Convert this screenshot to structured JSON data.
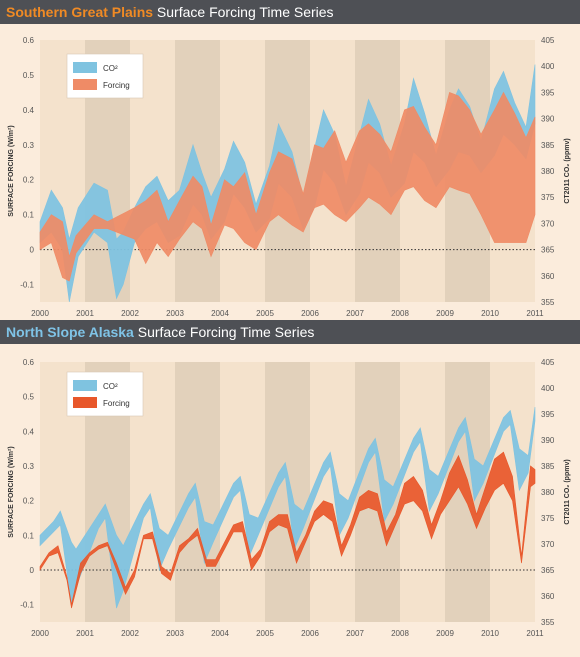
{
  "palette": {
    "background": "#fbecdc",
    "band_light": "#f4e2cc",
    "band_dark": "#e2d1bb",
    "title_bar": "#4e5055",
    "co2_color": "#7fc3e0",
    "forcing_fill_sgp": "#ef8b66",
    "forcing_fill_nsa": "#e8572a",
    "accent_sgp": "#f08a24",
    "accent_nsa": "#7fc3e6",
    "axis_text": "#555555"
  },
  "panels": [
    {
      "title_bold": "Southern Great Plains",
      "title_rest": " Surface Forcing Time Series",
      "accent_key": "accent_sgp",
      "forcing_key": "forcing_fill_sgp"
    },
    {
      "title_bold": "North Slope Alaska",
      "title_rest": " Surface Forcing Time Series",
      "accent_key": "accent_nsa",
      "forcing_key": "forcing_fill_nsa"
    }
  ],
  "legend": {
    "co2": "CO²",
    "forcing": "Forcing"
  },
  "chart_data": [
    {
      "type": "area",
      "title": "Southern Great Plains Surface Forcing Time Series",
      "ylabel": "SURFACE FORCING (W/m²)",
      "y2label": "CT2011 CO₂ (ppmv)",
      "ylim": [
        -0.15,
        0.6
      ],
      "y2lim": [
        355,
        405
      ],
      "xlim": [
        2000,
        2011
      ],
      "x_ticks": [
        "2000",
        "2001",
        "2002",
        "2003",
        "2004",
        "2005",
        "2006",
        "2007",
        "2008",
        "2009",
        "2010",
        "2011"
      ],
      "y_ticks": [
        "-0.1",
        "0",
        "0.1",
        "0.2",
        "0.3",
        "0.4",
        "0.5",
        "0.6"
      ],
      "y2_ticks": [
        "355",
        "360",
        "365",
        "370",
        "375",
        "380",
        "385",
        "390",
        "395",
        "400",
        "405"
      ],
      "grid": "alternating yearly bands, dotted zero line",
      "legend_placement": "top-left",
      "series": [
        {
          "name": "CO²",
          "x": [
            2000.0,
            2000.25,
            2000.5,
            2000.65,
            2000.85,
            2001.2,
            2001.5,
            2001.7,
            2001.85,
            2002.1,
            2002.35,
            2002.6,
            2002.85,
            2003.1,
            2003.4,
            2003.6,
            2003.8,
            2004.1,
            2004.3,
            2004.55,
            2004.8,
            2005.1,
            2005.3,
            2005.6,
            2005.85,
            2006.1,
            2006.3,
            2006.55,
            2006.8,
            2007.1,
            2007.3,
            2007.55,
            2007.8,
            2008.1,
            2008.3,
            2008.55,
            2008.8,
            2009.1,
            2009.3,
            2009.55,
            2009.8,
            2010.1,
            2010.3,
            2010.55,
            2010.8,
            2011.0
          ],
          "upper": [
            0.08,
            0.17,
            0.12,
            0.03,
            0.12,
            0.19,
            0.17,
            0.03,
            0.05,
            0.12,
            0.18,
            0.21,
            0.14,
            0.17,
            0.3,
            0.22,
            0.15,
            0.23,
            0.31,
            0.25,
            0.13,
            0.24,
            0.36,
            0.28,
            0.15,
            0.29,
            0.4,
            0.33,
            0.18,
            0.33,
            0.43,
            0.36,
            0.24,
            0.36,
            0.49,
            0.39,
            0.27,
            0.4,
            0.46,
            0.41,
            0.31,
            0.46,
            0.51,
            0.42,
            0.35,
            0.53
          ],
          "lower": [
            0.02,
            0.05,
            0.0,
            -0.15,
            -0.02,
            0.05,
            0.02,
            -0.14,
            -0.1,
            0.02,
            0.06,
            0.08,
            0.02,
            0.04,
            0.13,
            0.1,
            0.03,
            0.08,
            0.16,
            0.12,
            0.05,
            0.09,
            0.19,
            0.15,
            0.06,
            0.12,
            0.23,
            0.19,
            0.1,
            0.16,
            0.25,
            0.22,
            0.15,
            0.19,
            0.28,
            0.25,
            0.18,
            0.23,
            0.28,
            0.27,
            0.22,
            0.27,
            0.33,
            0.3,
            0.26,
            0.36
          ]
        },
        {
          "name": "Forcing",
          "x": [
            2000.0,
            2000.25,
            2000.5,
            2000.65,
            2000.8,
            2001.2,
            2001.5,
            2002.1,
            2002.35,
            2002.6,
            2002.85,
            2003.1,
            2003.4,
            2003.6,
            2003.8,
            2004.1,
            2004.3,
            2004.55,
            2004.8,
            2005.1,
            2005.3,
            2005.6,
            2005.85,
            2006.1,
            2006.3,
            2006.55,
            2006.8,
            2007.1,
            2007.3,
            2007.55,
            2007.8,
            2008.1,
            2008.3,
            2008.55,
            2008.8,
            2009.1,
            2009.3,
            2009.55,
            2009.8,
            2010.1,
            2010.3,
            2010.55,
            2010.8,
            2011.0
          ],
          "upper": [
            0.05,
            0.1,
            0.08,
            -0.02,
            0.04,
            0.1,
            0.08,
            0.12,
            0.14,
            0.17,
            0.08,
            0.14,
            0.21,
            0.18,
            0.07,
            0.2,
            0.18,
            0.22,
            0.1,
            0.22,
            0.28,
            0.26,
            0.16,
            0.3,
            0.29,
            0.34,
            0.25,
            0.34,
            0.36,
            0.33,
            0.28,
            0.4,
            0.41,
            0.35,
            0.3,
            0.45,
            0.44,
            0.4,
            0.33,
            0.4,
            0.45,
            0.39,
            0.32,
            0.38
          ],
          "lower": [
            0.0,
            0.02,
            -0.08,
            -0.09,
            -0.01,
            0.06,
            0.06,
            0.03,
            -0.04,
            0.02,
            -0.02,
            0.03,
            0.08,
            0.06,
            -0.02,
            0.07,
            0.06,
            0.02,
            0.0,
            0.08,
            0.1,
            0.07,
            0.05,
            0.12,
            0.13,
            0.1,
            0.08,
            0.12,
            0.15,
            0.13,
            0.1,
            0.17,
            0.18,
            0.14,
            0.12,
            0.18,
            0.17,
            0.16,
            0.1,
            0.02,
            0.02,
            0.02,
            0.02,
            0.1
          ]
        }
      ]
    },
    {
      "type": "area",
      "title": "North Slope Alaska Surface Forcing Time Series",
      "ylabel": "SURFACE FORCING (W/m²)",
      "y2label": "CT2011 CO₂ (ppmv)",
      "ylim": [
        -0.15,
        0.6
      ],
      "y2lim": [
        355,
        405
      ],
      "xlim": [
        2000,
        2011
      ],
      "x_ticks": [
        "2000",
        "2001",
        "2002",
        "2003",
        "2004",
        "2005",
        "2006",
        "2007",
        "2008",
        "2009",
        "2010",
        "2011"
      ],
      "y_ticks": [
        "-0.1",
        "0",
        "0.1",
        "0.2",
        "0.3",
        "0.4",
        "0.5",
        "0.6"
      ],
      "y2_ticks": [
        "355",
        "360",
        "365",
        "370",
        "375",
        "380",
        "385",
        "390",
        "395",
        "400",
        "405"
      ],
      "grid": "alternating yearly bands, dotted zero line",
      "legend_placement": "top-left",
      "series": [
        {
          "name": "CO²",
          "x": [
            2000.0,
            2000.3,
            2000.45,
            2000.7,
            2000.8,
            2001.3,
            2001.45,
            2001.7,
            2001.85,
            2002.3,
            2002.45,
            2002.65,
            2002.85,
            2003.3,
            2003.45,
            2003.65,
            2003.85,
            2004.3,
            2004.45,
            2004.65,
            2004.85,
            2005.3,
            2005.45,
            2005.65,
            2005.85,
            2006.3,
            2006.45,
            2006.65,
            2006.85,
            2007.3,
            2007.45,
            2007.65,
            2007.85,
            2008.3,
            2008.45,
            2008.65,
            2008.85,
            2009.3,
            2009.45,
            2009.65,
            2009.85,
            2010.3,
            2010.45,
            2010.65,
            2010.85,
            2011.0
          ],
          "upper": [
            0.1,
            0.14,
            0.17,
            0.08,
            0.06,
            0.16,
            0.19,
            0.1,
            0.07,
            0.19,
            0.22,
            0.12,
            0.1,
            0.22,
            0.25,
            0.14,
            0.13,
            0.25,
            0.27,
            0.16,
            0.15,
            0.28,
            0.31,
            0.19,
            0.17,
            0.31,
            0.34,
            0.22,
            0.2,
            0.35,
            0.38,
            0.26,
            0.24,
            0.38,
            0.41,
            0.29,
            0.27,
            0.41,
            0.44,
            0.32,
            0.3,
            0.44,
            0.46,
            0.35,
            0.33,
            0.47
          ],
          "lower": [
            0.07,
            0.11,
            0.13,
            -0.1,
            -0.05,
            0.12,
            0.15,
            -0.11,
            -0.06,
            0.15,
            0.18,
            0.0,
            0.06,
            0.18,
            0.21,
            0.02,
            0.08,
            0.21,
            0.23,
            0.04,
            0.1,
            0.24,
            0.27,
            0.06,
            0.12,
            0.27,
            0.3,
            0.1,
            0.15,
            0.31,
            0.34,
            0.14,
            0.19,
            0.34,
            0.37,
            0.17,
            0.22,
            0.37,
            0.4,
            0.2,
            0.25,
            0.4,
            0.42,
            0.23,
            0.28,
            0.43
          ]
        },
        {
          "name": "Forcing",
          "x": [
            2000.0,
            2000.2,
            2000.4,
            2000.6,
            2000.7,
            2000.9,
            2001.1,
            2001.3,
            2001.5,
            2001.7,
            2001.9,
            2002.1,
            2002.3,
            2002.5,
            2002.7,
            2002.9,
            2003.1,
            2003.3,
            2003.5,
            2003.7,
            2003.9,
            2004.1,
            2004.3,
            2004.5,
            2004.7,
            2004.9,
            2005.1,
            2005.3,
            2005.5,
            2005.7,
            2005.9,
            2006.1,
            2006.3,
            2006.5,
            2006.7,
            2006.9,
            2007.1,
            2007.3,
            2007.5,
            2007.7,
            2007.9,
            2008.1,
            2008.3,
            2008.5,
            2008.7,
            2008.9,
            2009.1,
            2009.3,
            2009.5,
            2009.7,
            2009.9,
            2010.1,
            2010.3,
            2010.5,
            2010.7,
            2010.9,
            2011.0
          ],
          "upper": [
            0.01,
            0.05,
            0.07,
            -0.02,
            -0.1,
            0.02,
            0.05,
            0.07,
            0.08,
            0.02,
            -0.05,
            0.0,
            0.1,
            0.11,
            0.01,
            -0.01,
            0.07,
            0.09,
            0.12,
            0.03,
            0.03,
            0.08,
            0.13,
            0.14,
            0.03,
            0.06,
            0.14,
            0.16,
            0.16,
            0.05,
            0.1,
            0.17,
            0.2,
            0.19,
            0.07,
            0.13,
            0.21,
            0.23,
            0.22,
            0.11,
            0.16,
            0.25,
            0.27,
            0.23,
            0.13,
            0.2,
            0.28,
            0.33,
            0.26,
            0.16,
            0.24,
            0.32,
            0.34,
            0.27,
            0.04,
            0.3,
            0.29
          ],
          "lower": [
            0.0,
            0.04,
            0.05,
            -0.03,
            -0.11,
            -0.01,
            0.04,
            0.06,
            0.07,
            0.0,
            -0.07,
            -0.02,
            0.09,
            0.09,
            -0.01,
            -0.03,
            0.05,
            0.08,
            0.1,
            0.01,
            0.01,
            0.06,
            0.11,
            0.11,
            0.0,
            0.04,
            0.11,
            0.13,
            0.12,
            0.02,
            0.08,
            0.14,
            0.16,
            0.14,
            0.04,
            0.1,
            0.17,
            0.18,
            0.17,
            0.07,
            0.13,
            0.19,
            0.2,
            0.17,
            0.09,
            0.16,
            0.2,
            0.24,
            0.19,
            0.12,
            0.18,
            0.23,
            0.25,
            0.2,
            0.02,
            0.24,
            0.25
          ]
        }
      ]
    }
  ]
}
